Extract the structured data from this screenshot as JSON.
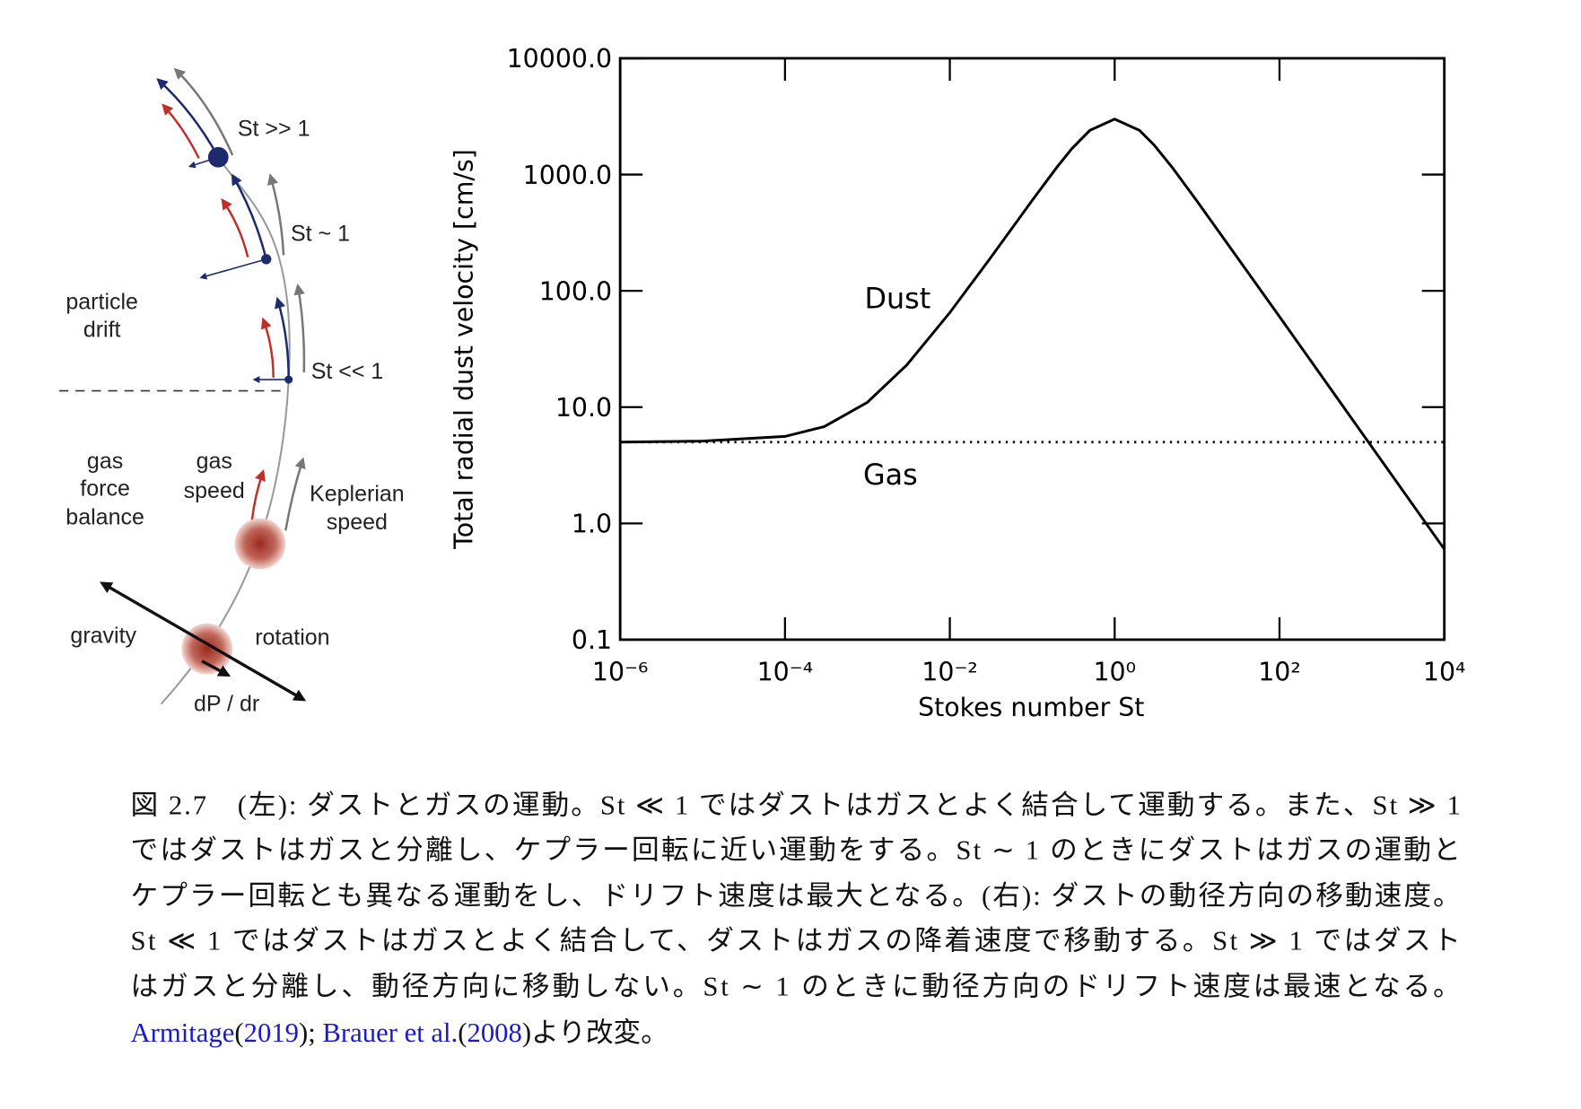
{
  "diagram": {
    "st_large": "St >> 1",
    "st_one": "St ~ 1",
    "st_small": "St << 1",
    "particle_drift": [
      "particle",
      "drift"
    ],
    "gas_force_balance": [
      "gas",
      "force",
      "balance"
    ],
    "gas_speed": [
      "gas",
      "speed"
    ],
    "keplerian_speed": [
      "Keplerian",
      "speed"
    ],
    "gravity": "gravity",
    "rotation": "rotation",
    "dpdr": "dP / dr"
  },
  "chart_data": {
    "type": "line",
    "ylabel": "Total radial dust velocity [cm/s]",
    "xlabel": "Stokes number St",
    "xscale": "log",
    "yscale": "log",
    "xlim": [
      1e-06,
      10000
    ],
    "ylim": [
      0.1,
      10000
    ],
    "xticks": [
      {
        "value": 1e-06,
        "label": "10⁻⁶"
      },
      {
        "value": 0.0001,
        "label": "10⁻⁴"
      },
      {
        "value": 0.01,
        "label": "10⁻²"
      },
      {
        "value": 1,
        "label": "10⁰"
      },
      {
        "value": 100,
        "label": "10²"
      },
      {
        "value": 10000,
        "label": "10⁴"
      }
    ],
    "yticks": [
      0.1,
      {
        "value": 1,
        "label": "1.0"
      },
      {
        "value": 10,
        "label": "10.0"
      },
      {
        "value": 100,
        "label": "100.0"
      },
      {
        "value": 1000,
        "label": "1000.0"
      },
      {
        "value": 10000,
        "label": "10000.0"
      }
    ],
    "x": [
      1e-06,
      1e-05,
      0.0001,
      0.0003,
      0.001,
      0.003,
      0.01,
      0.03,
      0.1,
      0.2,
      0.3,
      0.5,
      1,
      2,
      3,
      5,
      10,
      100,
      1000,
      10000
    ],
    "series": [
      {
        "name": "Dust",
        "color": "#000000",
        "dash": "solid",
        "values": [
          5,
          5.1,
          5.6,
          6.8,
          11,
          23,
          65,
          185,
          600,
          1160,
          1660,
          2400,
          3000,
          2400,
          1800,
          1150,
          590,
          60,
          6,
          0.6
        ]
      },
      {
        "name": "Gas",
        "color": "#000000",
        "dash": "dotted",
        "values": [
          5,
          5,
          5,
          5,
          5,
          5,
          5,
          5,
          5,
          5,
          5,
          5,
          5,
          5,
          5,
          5,
          5,
          5,
          5,
          5
        ]
      }
    ]
  },
  "caption": {
    "lines": [
      "図 2.7　(左): ダストとガスの運動。St ≪ 1 ではダストはガスとよく結合して運動する。また、St ≫ 1",
      "ではダストはガスと分離し、ケプラー回転に近い運動をする。St ∼ 1 のときにダストはガスの運動と",
      "ケプラー回転とも異なる運動をし、ドリフト速度は最大となる。(右): ダストの動径方向の移動速度。",
      "St ≪ 1 ではダストはガスとよく結合して、ダストはガスの降着速度で移動する。St ≫ 1 ではダスト",
      "はガスと分離し、動径方向に移動しない。St ∼ 1 のときに動径方向のドリフト速度は最速となる。"
    ],
    "refs": [
      "Armitage",
      "(",
      "2019",
      ");",
      "Brauer et al.",
      "(",
      "2008",
      ")より改変。"
    ]
  }
}
